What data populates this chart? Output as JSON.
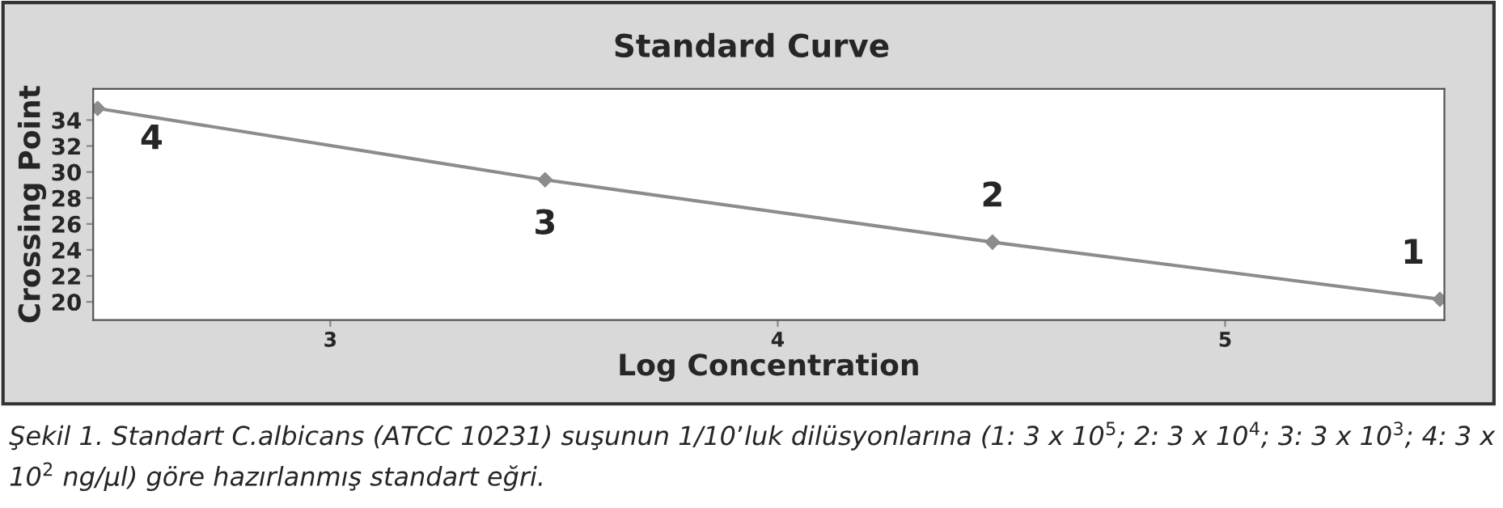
{
  "chart_data": {
    "type": "line",
    "title": "Standard Curve",
    "xlabel": "Log Concentration",
    "ylabel": "Crossing Point",
    "x": [
      2.48,
      3.48,
      4.48,
      5.48
    ],
    "series": [
      {
        "color": "#8c8c8c",
        "values": [
          34.9,
          29.4,
          24.6,
          20.2
        ]
      }
    ],
    "marker": "diamond",
    "line_style": "solid",
    "grid": false,
    "legend": false,
    "xlim": [
      2.47,
      5.49
    ],
    "xticks": [
      3,
      4,
      5
    ],
    "ylim": [
      18.6,
      36.4
    ],
    "yticks": [
      20,
      22,
      24,
      26,
      28,
      30,
      32,
      34
    ],
    "annotations": [
      {
        "text": "4",
        "x": 2.48,
        "y": 34.9
      },
      {
        "text": "3",
        "x": 3.48,
        "y": 29.4
      },
      {
        "text": "2",
        "x": 4.48,
        "y": 24.6
      },
      {
        "text": "1",
        "x": 5.48,
        "y": 20.2
      },
      "Şekil 1. Standart C.albicans (ATCC 10231) suşunun 1/10’luk dilüsyonlarına (1: 3 x 10$^{5}$; 2: 3 x 10$^{4}$; 3: 3 x 10$^{3}$; 4: 3 x 10$^{2}$ ng/µl) göre hazırlanmış standart eğri."
    ]
  }
}
